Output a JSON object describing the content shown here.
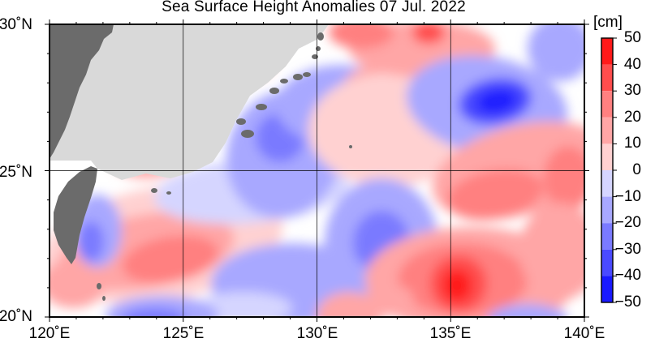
{
  "title": "Sea Surface Height Anomalies  07 Jul. 2022",
  "map": {
    "lon_range": [
      120,
      140
    ],
    "lat_range": [
      20,
      30
    ],
    "lat_labels": [
      "30˚N",
      "25˚N",
      "20˚N"
    ],
    "lon_labels": [
      "120˚E",
      "125˚E",
      "130˚E",
      "135˚E",
      "140˚E"
    ],
    "grid_lons": [
      125,
      130,
      135
    ],
    "grid_lats": [
      25
    ],
    "colors": {
      "land": "#6b6b6b",
      "land_mask": "#d9d9d9",
      "ocean_zero": "#ffffff",
      "positive_max": "#ff0000",
      "negative_max": "#0000ff"
    }
  },
  "colorbar": {
    "unit": "[cm]",
    "ticks": [
      "50",
      "40",
      "30",
      "20",
      "10",
      "0",
      "−10",
      "−20",
      "−30",
      "−40",
      "−50"
    ],
    "levels": [
      50,
      40,
      30,
      20,
      10,
      0,
      -10,
      -20,
      -30,
      -40,
      -50
    ],
    "colors": [
      "#ff1a1a",
      "#ff4d4d",
      "#ff8080",
      "#ffa6a6",
      "#ffd1d1",
      "#ffffff",
      "#d5d5ff",
      "#a8a8ff",
      "#7a7aff",
      "#4a4aff",
      "#1a1aff"
    ]
  }
}
